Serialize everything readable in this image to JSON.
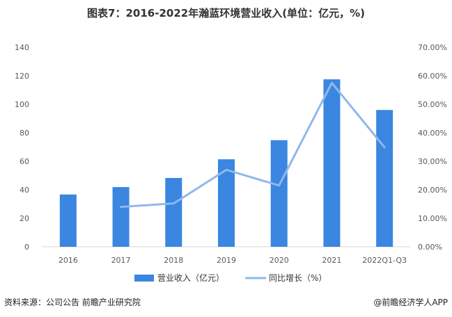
{
  "title": "图表7：2016-2022年瀚蓝环境营业收入(单位：亿元，%)",
  "footer": {
    "source": "资料来源：公司公告 前瞻产业研究院",
    "brand": "@前瞻经济学人APP"
  },
  "colors": {
    "bar": "#3a86e0",
    "line": "#8fb8ec",
    "grid": "#d9d9d9"
  },
  "chart_data": {
    "type": "bar",
    "categories": [
      "2016",
      "2017",
      "2018",
      "2019",
      "2020",
      "2021",
      "2022Q1-Q3"
    ],
    "series": [
      {
        "name": "营业收入（亿元）",
        "type": "bar",
        "axis": "left",
        "values": [
          36.7,
          41.9,
          48.3,
          61.4,
          74.8,
          117.5,
          96.0
        ]
      },
      {
        "name": "同比增长（%）",
        "type": "line",
        "axis": "right",
        "values": [
          null,
          14.0,
          15.2,
          27.0,
          21.5,
          57.5,
          34.9
        ]
      }
    ],
    "y_left": {
      "min": 0,
      "max": 140,
      "ticks": [
        "0",
        "20",
        "40",
        "60",
        "80",
        "100",
        "120",
        "140"
      ]
    },
    "y_right": {
      "min": 0,
      "max": 70,
      "ticks": [
        "0.00%",
        "10.00%",
        "20.00%",
        "30.00%",
        "40.00%",
        "50.00%",
        "60.00%",
        "70.00%"
      ]
    },
    "grid": false,
    "legend_position": "bottom"
  }
}
